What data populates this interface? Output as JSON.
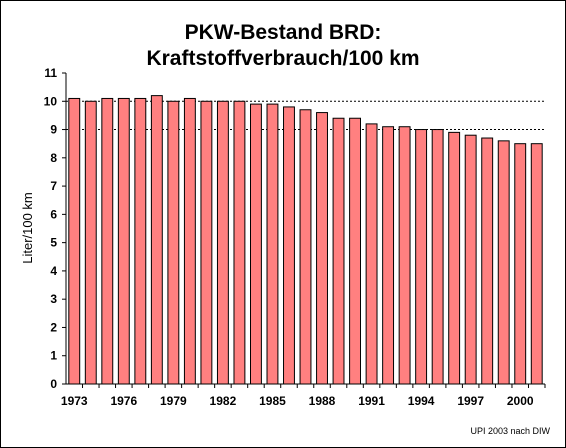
{
  "chart_data": {
    "type": "bar",
    "title_lines": [
      "PKW-Bestand BRD:",
      "Kraftstoffverbrauch/100 km"
    ],
    "xlabel": "",
    "ylabel": "Liter/100 km",
    "ylim": [
      0,
      11
    ],
    "yticks": [
      0,
      1,
      2,
      3,
      4,
      5,
      6,
      7,
      8,
      9,
      10,
      11
    ],
    "gridlines": [
      9,
      10
    ],
    "grid": "dashed at 9 and 10",
    "legend": "none",
    "categories": [
      "1973",
      "1974",
      "1975",
      "1976",
      "1977",
      "1978",
      "1979",
      "1980",
      "1981",
      "1982",
      "1983",
      "1984",
      "1985",
      "1986",
      "1987",
      "1988",
      "1989",
      "1990",
      "1991",
      "1992",
      "1993",
      "1994",
      "1995",
      "1996",
      "1997",
      "1998",
      "1999",
      "2000",
      "2001"
    ],
    "xtick_labels": [
      "1973",
      "1976",
      "1979",
      "1982",
      "1985",
      "1988",
      "1991",
      "1994",
      "1997",
      "2000"
    ],
    "values": [
      10.1,
      10.0,
      10.1,
      10.1,
      10.1,
      10.2,
      10.0,
      10.1,
      10.0,
      10.0,
      10.0,
      9.9,
      9.9,
      9.8,
      9.7,
      9.6,
      9.4,
      9.4,
      9.2,
      9.1,
      9.1,
      9.0,
      9.0,
      8.9,
      8.8,
      8.7,
      8.6,
      8.5,
      8.5
    ],
    "colors": {
      "bar_fill": "#ff8080",
      "bar_stroke": "#000000",
      "plot_bg": "#ffffff"
    },
    "source": "UPI 2003 nach DIW"
  }
}
